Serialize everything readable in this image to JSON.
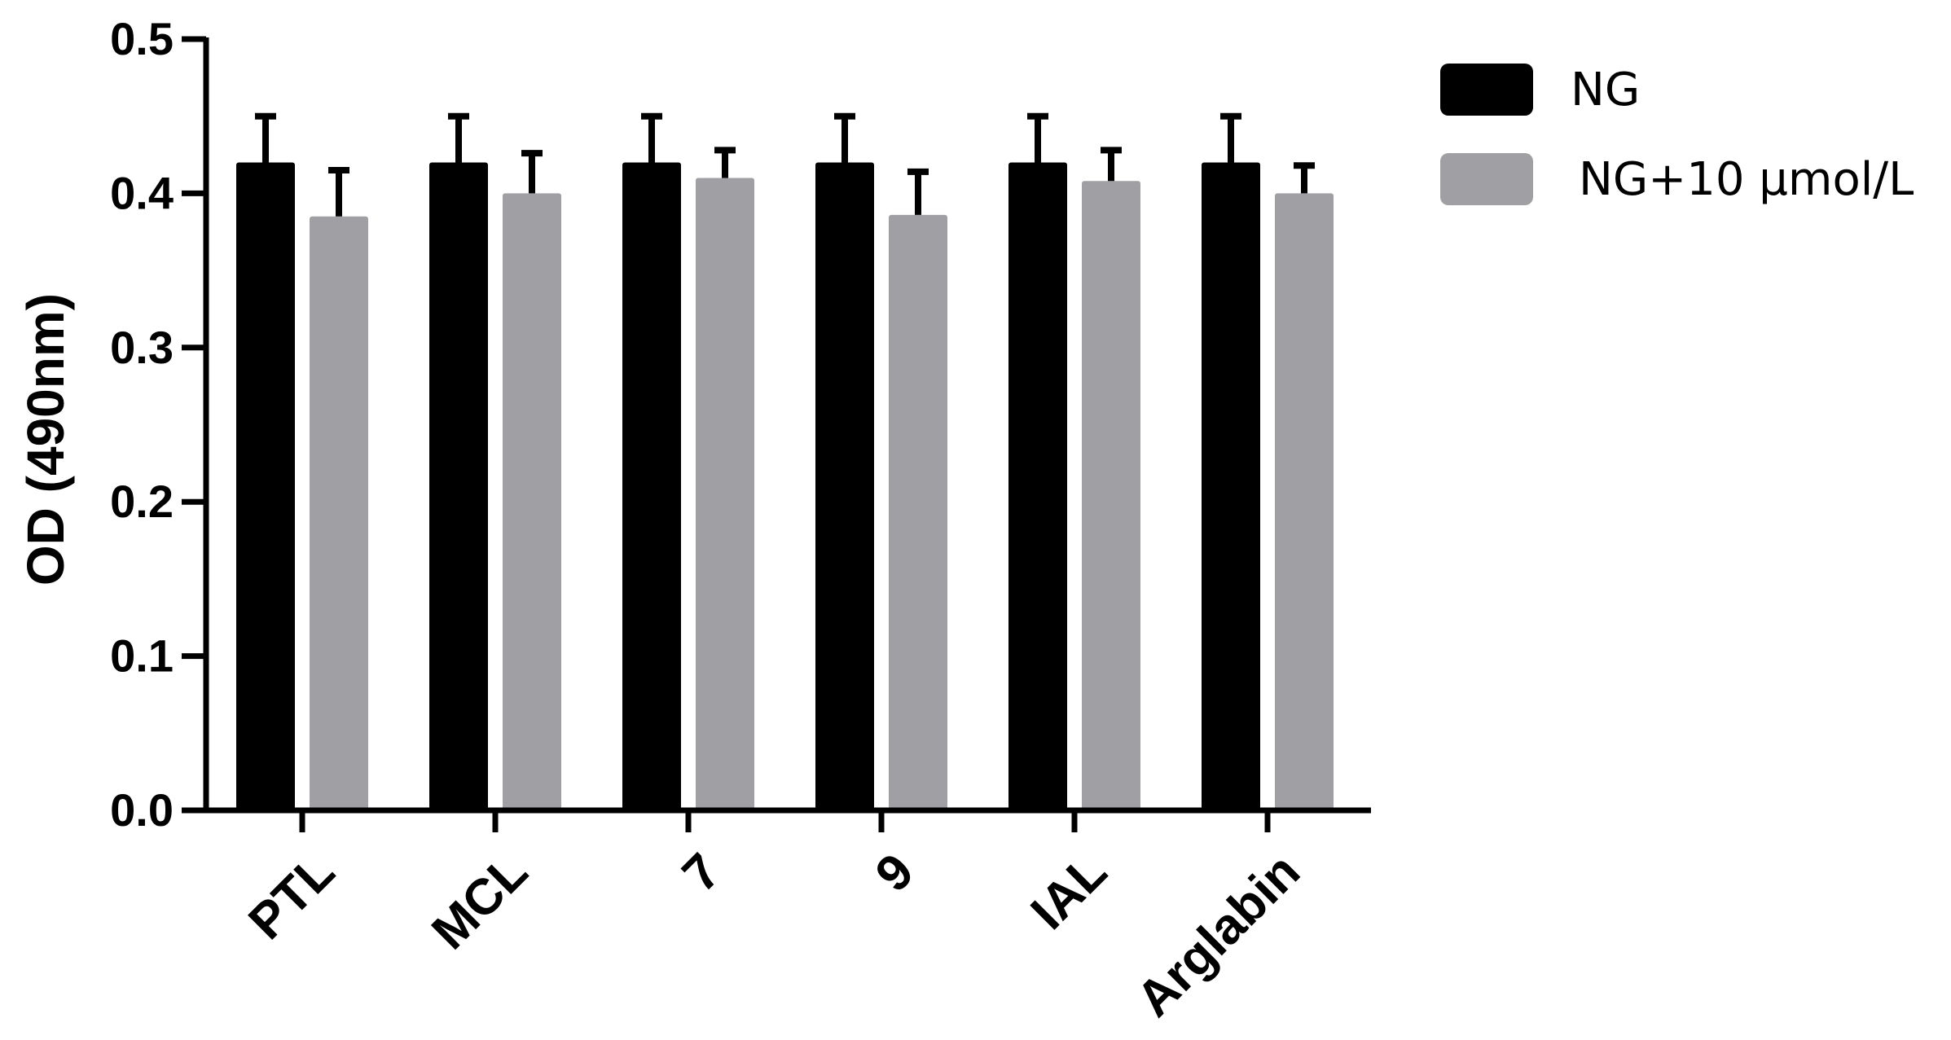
{
  "chart_data": {
    "type": "bar",
    "title": "",
    "xlabel": "",
    "ylabel": "OD (490nm)",
    "ylim": [
      0,
      0.5
    ],
    "yticks": [
      "0.0",
      "0.1",
      "0.2",
      "0.3",
      "0.4",
      "0.5"
    ],
    "yticks_values": [
      0,
      0.1,
      0.2,
      0.3,
      0.4,
      0.5
    ],
    "categories": [
      "PTL",
      "MCL",
      "7",
      "9",
      "IAL",
      "Arglabin"
    ],
    "series": [
      {
        "name": "NG",
        "color": "#000000",
        "values": [
          0.42,
          0.42,
          0.42,
          0.42,
          0.42,
          0.42
        ],
        "errors": [
          0.03,
          0.03,
          0.03,
          0.03,
          0.03,
          0.03
        ]
      },
      {
        "name": "NG+10 μmol/L",
        "color": "#a0a0a4",
        "values": [
          0.385,
          0.4,
          0.41,
          0.386,
          0.408,
          0.4
        ],
        "errors": [
          0.03,
          0.026,
          0.018,
          0.028,
          0.02,
          0.018
        ]
      }
    ],
    "legend_position": "top-right",
    "grid": false
  }
}
